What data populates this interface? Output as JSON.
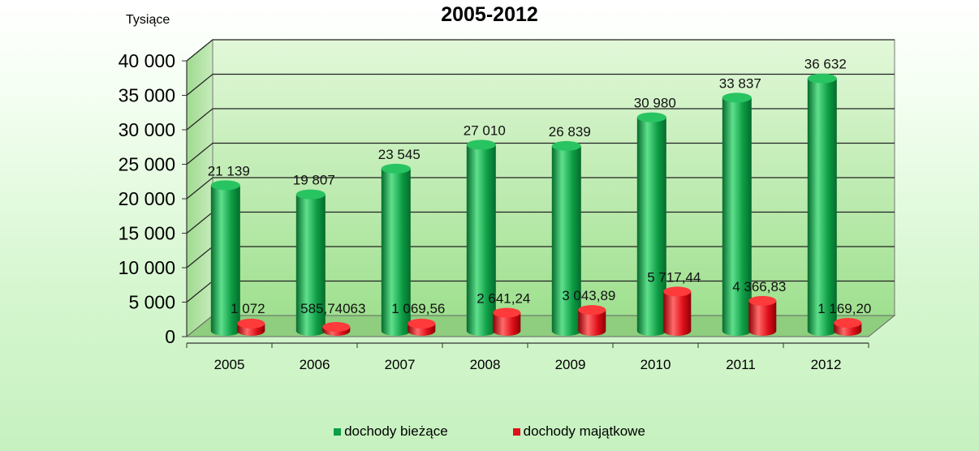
{
  "chart_data": {
    "type": "bar",
    "title": "2005-2012",
    "ylabel": "Tysiące",
    "xlabel": "",
    "categories": [
      "2005",
      "2006",
      "2007",
      "2008",
      "2009",
      "2010",
      "2011",
      "2012"
    ],
    "series": [
      {
        "name": "dochody bieżące",
        "color": "#0e9e45",
        "values": [
          21139,
          19807,
          23545,
          27010,
          26839,
          30980,
          33837,
          36632
        ],
        "labels": [
          "21 139",
          "19 807",
          "23 545",
          "27 010",
          "26 839",
          "30 980",
          "33 837",
          "36 632"
        ]
      },
      {
        "name": "dochody majątkowe",
        "color": "#e0101a",
        "values": [
          1072,
          585.74063,
          1069.56,
          2641.24,
          3043.89,
          5717.44,
          4366.83,
          1169.2
        ],
        "labels": [
          "1 072",
          "585,74063",
          "1 069,56",
          "2 641,24",
          "3 043,89",
          "5 717,44",
          "4 366,83",
          "1 169,20"
        ]
      }
    ],
    "ylim": [
      0,
      40000
    ],
    "yticks": [
      "0",
      "5 000",
      "10 000",
      "15 000",
      "20 000",
      "25 000",
      "30 000",
      "35 000",
      "40 000"
    ],
    "grid": true,
    "legend_position": "bottom",
    "style": "3d-cylinder"
  }
}
